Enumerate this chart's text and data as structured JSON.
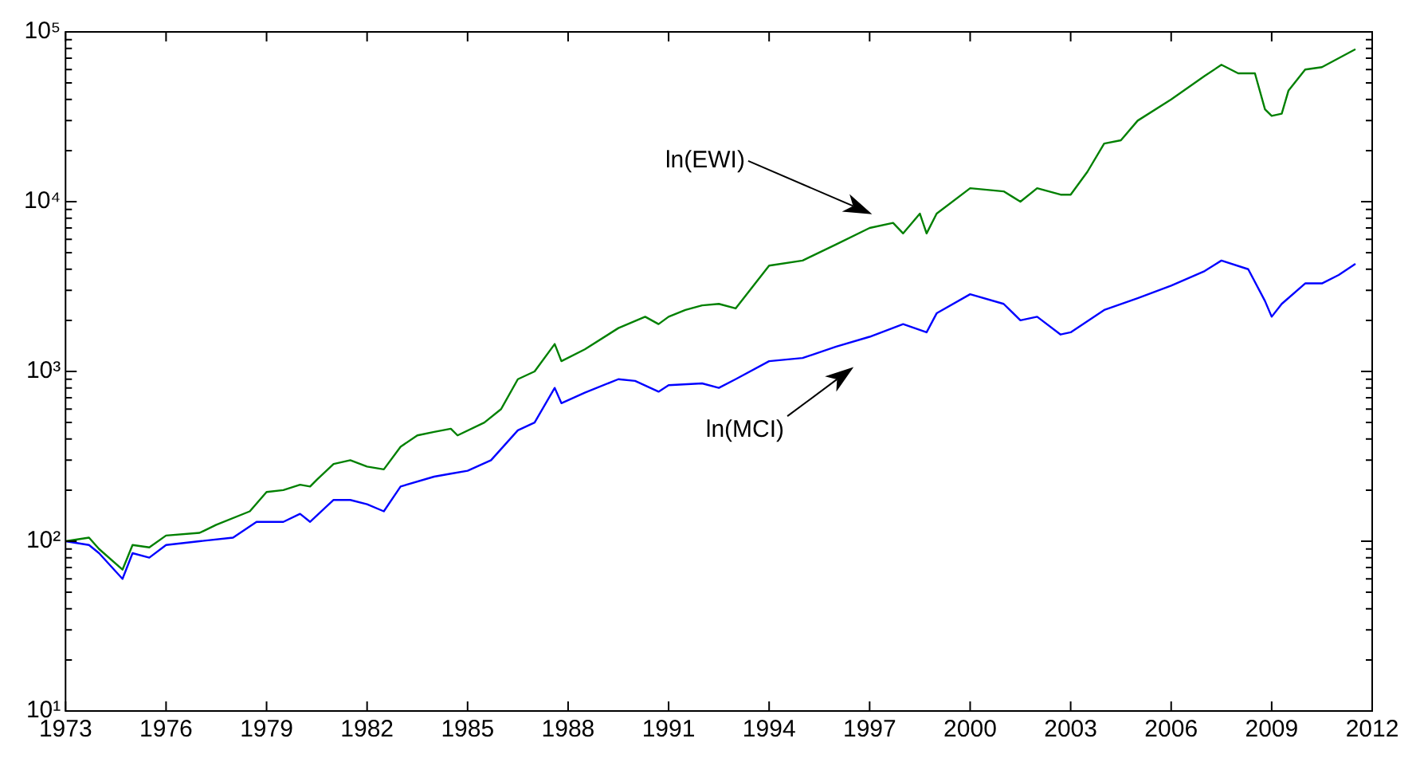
{
  "chart_data": {
    "type": "line",
    "log": "y",
    "grid": false,
    "legend": false,
    "marker": "none",
    "line_style": "solid",
    "xlim": [
      1973,
      2012
    ],
    "xticks": [
      1973,
      1976,
      1979,
      1982,
      1985,
      1988,
      1991,
      1994,
      1997,
      2000,
      2003,
      2006,
      2009,
      2012
    ],
    "ylim": [
      10,
      100000
    ],
    "yticks": [
      {
        "value": 10,
        "label": "10¹"
      },
      {
        "value": 20,
        "label": null
      },
      {
        "value": 30,
        "label": null
      },
      {
        "value": 40,
        "label": null
      },
      {
        "value": 50,
        "label": null
      },
      {
        "value": 60,
        "label": null
      },
      {
        "value": 70,
        "label": null
      },
      {
        "value": 80,
        "label": null
      },
      {
        "value": 90,
        "label": null
      },
      {
        "value": 100,
        "label": "10²"
      },
      {
        "value": 200,
        "label": null
      },
      {
        "value": 300,
        "label": null
      },
      {
        "value": 400,
        "label": null
      },
      {
        "value": 500,
        "label": null
      },
      {
        "value": 600,
        "label": null
      },
      {
        "value": 700,
        "label": null
      },
      {
        "value": 800,
        "label": null
      },
      {
        "value": 900,
        "label": null
      },
      {
        "value": 1000,
        "label": "10³"
      },
      {
        "value": 2000,
        "label": null
      },
      {
        "value": 3000,
        "label": null
      },
      {
        "value": 4000,
        "label": null
      },
      {
        "value": 5000,
        "label": null
      },
      {
        "value": 6000,
        "label": null
      },
      {
        "value": 7000,
        "label": null
      },
      {
        "value": 8000,
        "label": null
      },
      {
        "value": 9000,
        "label": null
      },
      {
        "value": 10000,
        "label": "10⁴"
      },
      {
        "value": 20000,
        "label": null
      },
      {
        "value": 30000,
        "label": null
      },
      {
        "value": 40000,
        "label": null
      },
      {
        "value": 50000,
        "label": null
      },
      {
        "value": 60000,
        "label": null
      },
      {
        "value": 70000,
        "label": null
      },
      {
        "value": 80000,
        "label": null
      },
      {
        "value": 90000,
        "label": null
      },
      {
        "value": 100000,
        "label": "10⁵"
      }
    ],
    "series": [
      {
        "color": "#008000",
        "x": [
          1973.0,
          1973.7,
          1974.0,
          1974.7,
          1975.0,
          1975.5,
          1976.0,
          1977.0,
          1977.5,
          1978.5,
          1979.0,
          1979.5,
          1980.0,
          1980.3,
          1980.5,
          1981.0,
          1981.5,
          1982.0,
          1982.5,
          1983.0,
          1983.5,
          1984.0,
          1984.5,
          1984.7,
          1985.5,
          1986.0,
          1986.5,
          1987.0,
          1987.6,
          1987.8,
          1988.5,
          1989.5,
          1990.3,
          1990.7,
          1991.0,
          1991.5,
          1992.0,
          1992.5,
          1993.0,
          1994.0,
          1995.0,
          1996.0,
          1997.0,
          1997.7,
          1998.0,
          1998.5,
          1998.7,
          1999.0,
          2000.0,
          2001.0,
          2001.5,
          2002.0,
          2002.7,
          2003.0,
          2003.5,
          2004.0,
          2004.5,
          2005.0,
          2006.0,
          2007.0,
          2007.5,
          2008.0,
          2008.5,
          2008.8,
          2009.0,
          2009.3,
          2009.5,
          2010.0,
          2010.5,
          2011.0,
          2011.5
        ],
        "values": [
          100,
          105,
          90,
          68,
          95,
          92,
          108,
          112,
          125,
          150,
          195,
          200,
          215,
          210,
          230,
          285,
          300,
          275,
          265,
          360,
          420,
          440,
          460,
          420,
          500,
          600,
          900,
          1000,
          1450,
          1150,
          1350,
          1800,
          2100,
          1900,
          2100,
          2300,
          2450,
          2500,
          2350,
          4200,
          4500,
          5600,
          7000,
          7500,
          6500,
          8500,
          6500,
          8500,
          12000,
          11500,
          10000,
          12000,
          11000,
          11000,
          15000,
          22000,
          23000,
          30000,
          40000,
          55000,
          64000,
          57000,
          57000,
          35000,
          32000,
          33000,
          45000,
          60000,
          62000,
          70000,
          79000
        ]
      },
      {
        "color": "#0000ff",
        "x": [
          1973.0,
          1973.7,
          1974.0,
          1974.7,
          1975.0,
          1975.5,
          1976.0,
          1977.0,
          1978.0,
          1978.7,
          1979.5,
          1980.0,
          1980.3,
          1981.0,
          1981.5,
          1982.0,
          1982.5,
          1983.0,
          1984.0,
          1984.5,
          1985.0,
          1985.7,
          1986.5,
          1987.0,
          1987.6,
          1987.8,
          1988.5,
          1989.5,
          1990.0,
          1990.7,
          1991.0,
          1992.0,
          1992.5,
          1993.0,
          1994.0,
          1995.0,
          1996.0,
          1997.0,
          1998.0,
          1998.7,
          1999.0,
          2000.0,
          2001.0,
          2001.5,
          2002.0,
          2002.7,
          2003.0,
          2004.0,
          2005.0,
          2006.0,
          2007.0,
          2007.5,
          2008.3,
          2008.8,
          2009.0,
          2009.3,
          2010.0,
          2010.5,
          2011.0,
          2011.5
        ],
        "values": [
          100,
          95,
          85,
          60,
          85,
          80,
          95,
          100,
          105,
          130,
          130,
          145,
          130,
          175,
          175,
          165,
          150,
          210,
          240,
          250,
          260,
          300,
          450,
          500,
          800,
          650,
          750,
          900,
          880,
          760,
          830,
          850,
          800,
          900,
          1150,
          1200,
          1400,
          1600,
          1900,
          1700,
          2200,
          2850,
          2500,
          2000,
          2100,
          1650,
          1700,
          2300,
          2700,
          3200,
          3900,
          4500,
          4000,
          2600,
          2100,
          2500,
          3300,
          3300,
          3700,
          4300
        ]
      }
    ],
    "annotations": [
      "ln(EWI)",
      "ln(MCI)"
    ]
  }
}
